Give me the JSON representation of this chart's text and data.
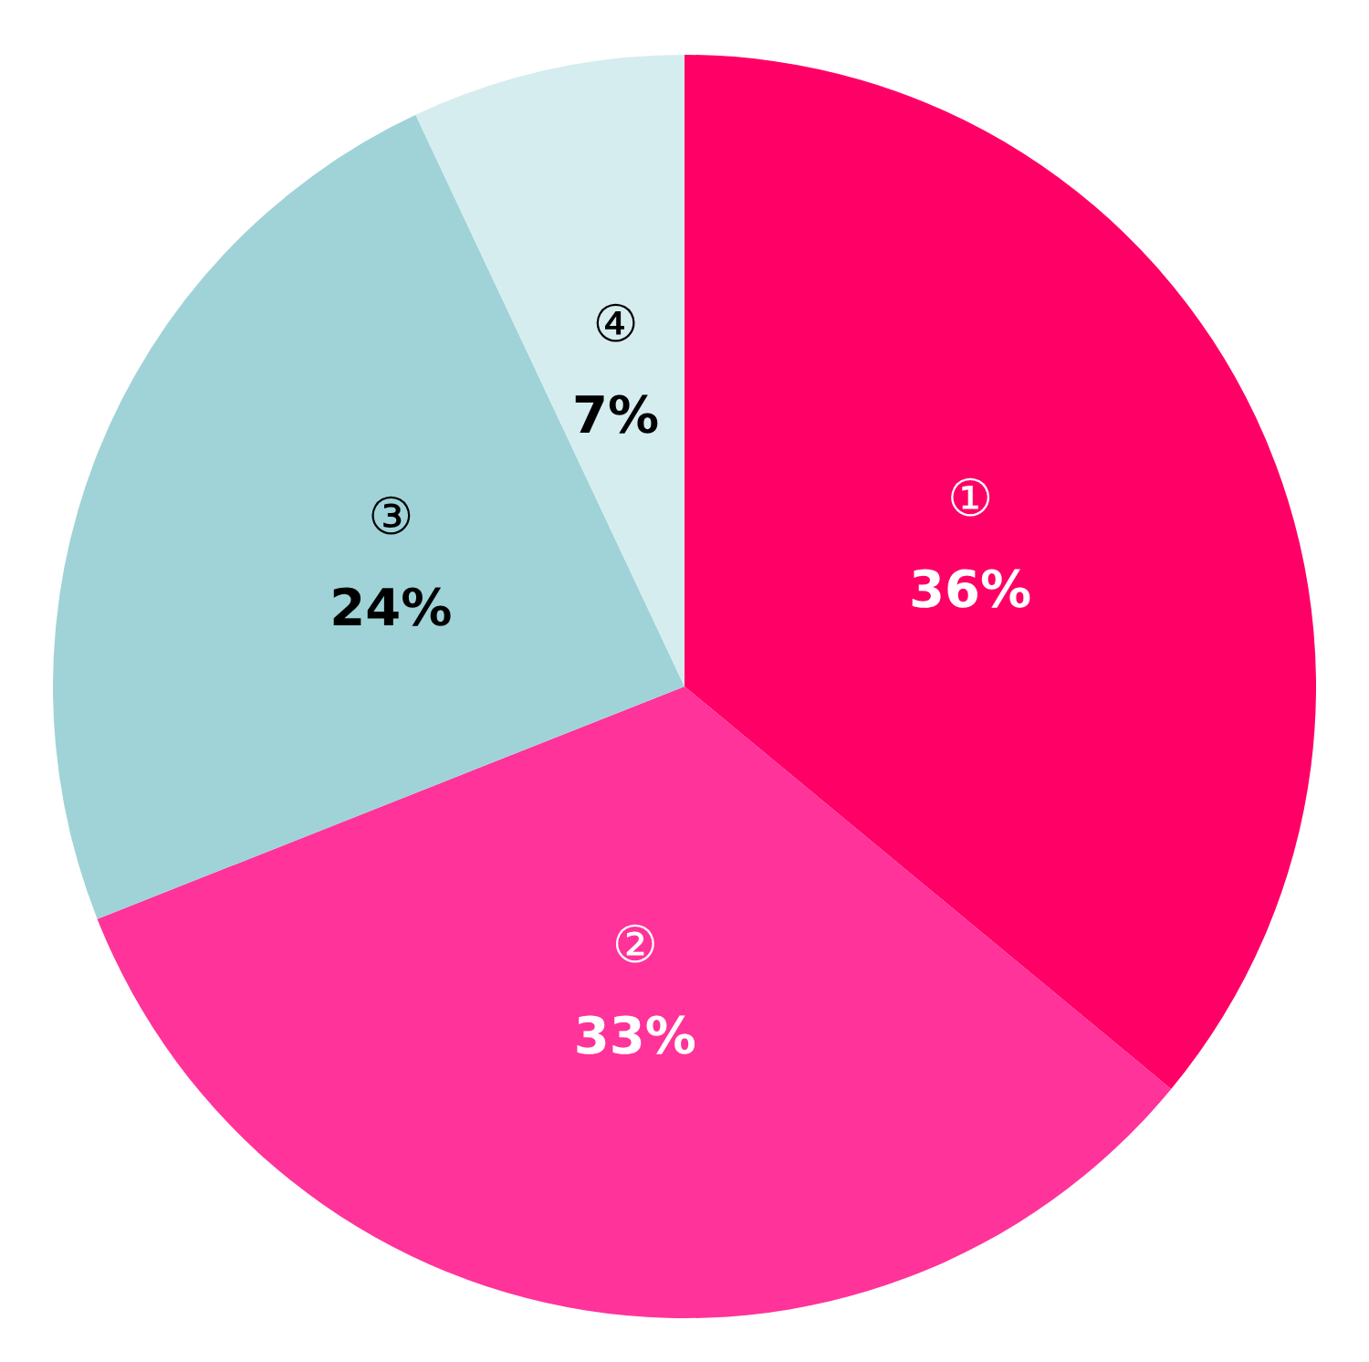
{
  "chart_data": {
    "type": "pie",
    "categories": [
      "①",
      "②",
      "③",
      "④"
    ],
    "values": [
      36,
      33,
      24,
      7
    ],
    "colors": [
      "#ff0066",
      "#ff3399",
      "#9fd3d8",
      "#d6edf0"
    ],
    "value_labels": [
      "36%",
      "33%",
      "24%",
      "7%"
    ]
  }
}
